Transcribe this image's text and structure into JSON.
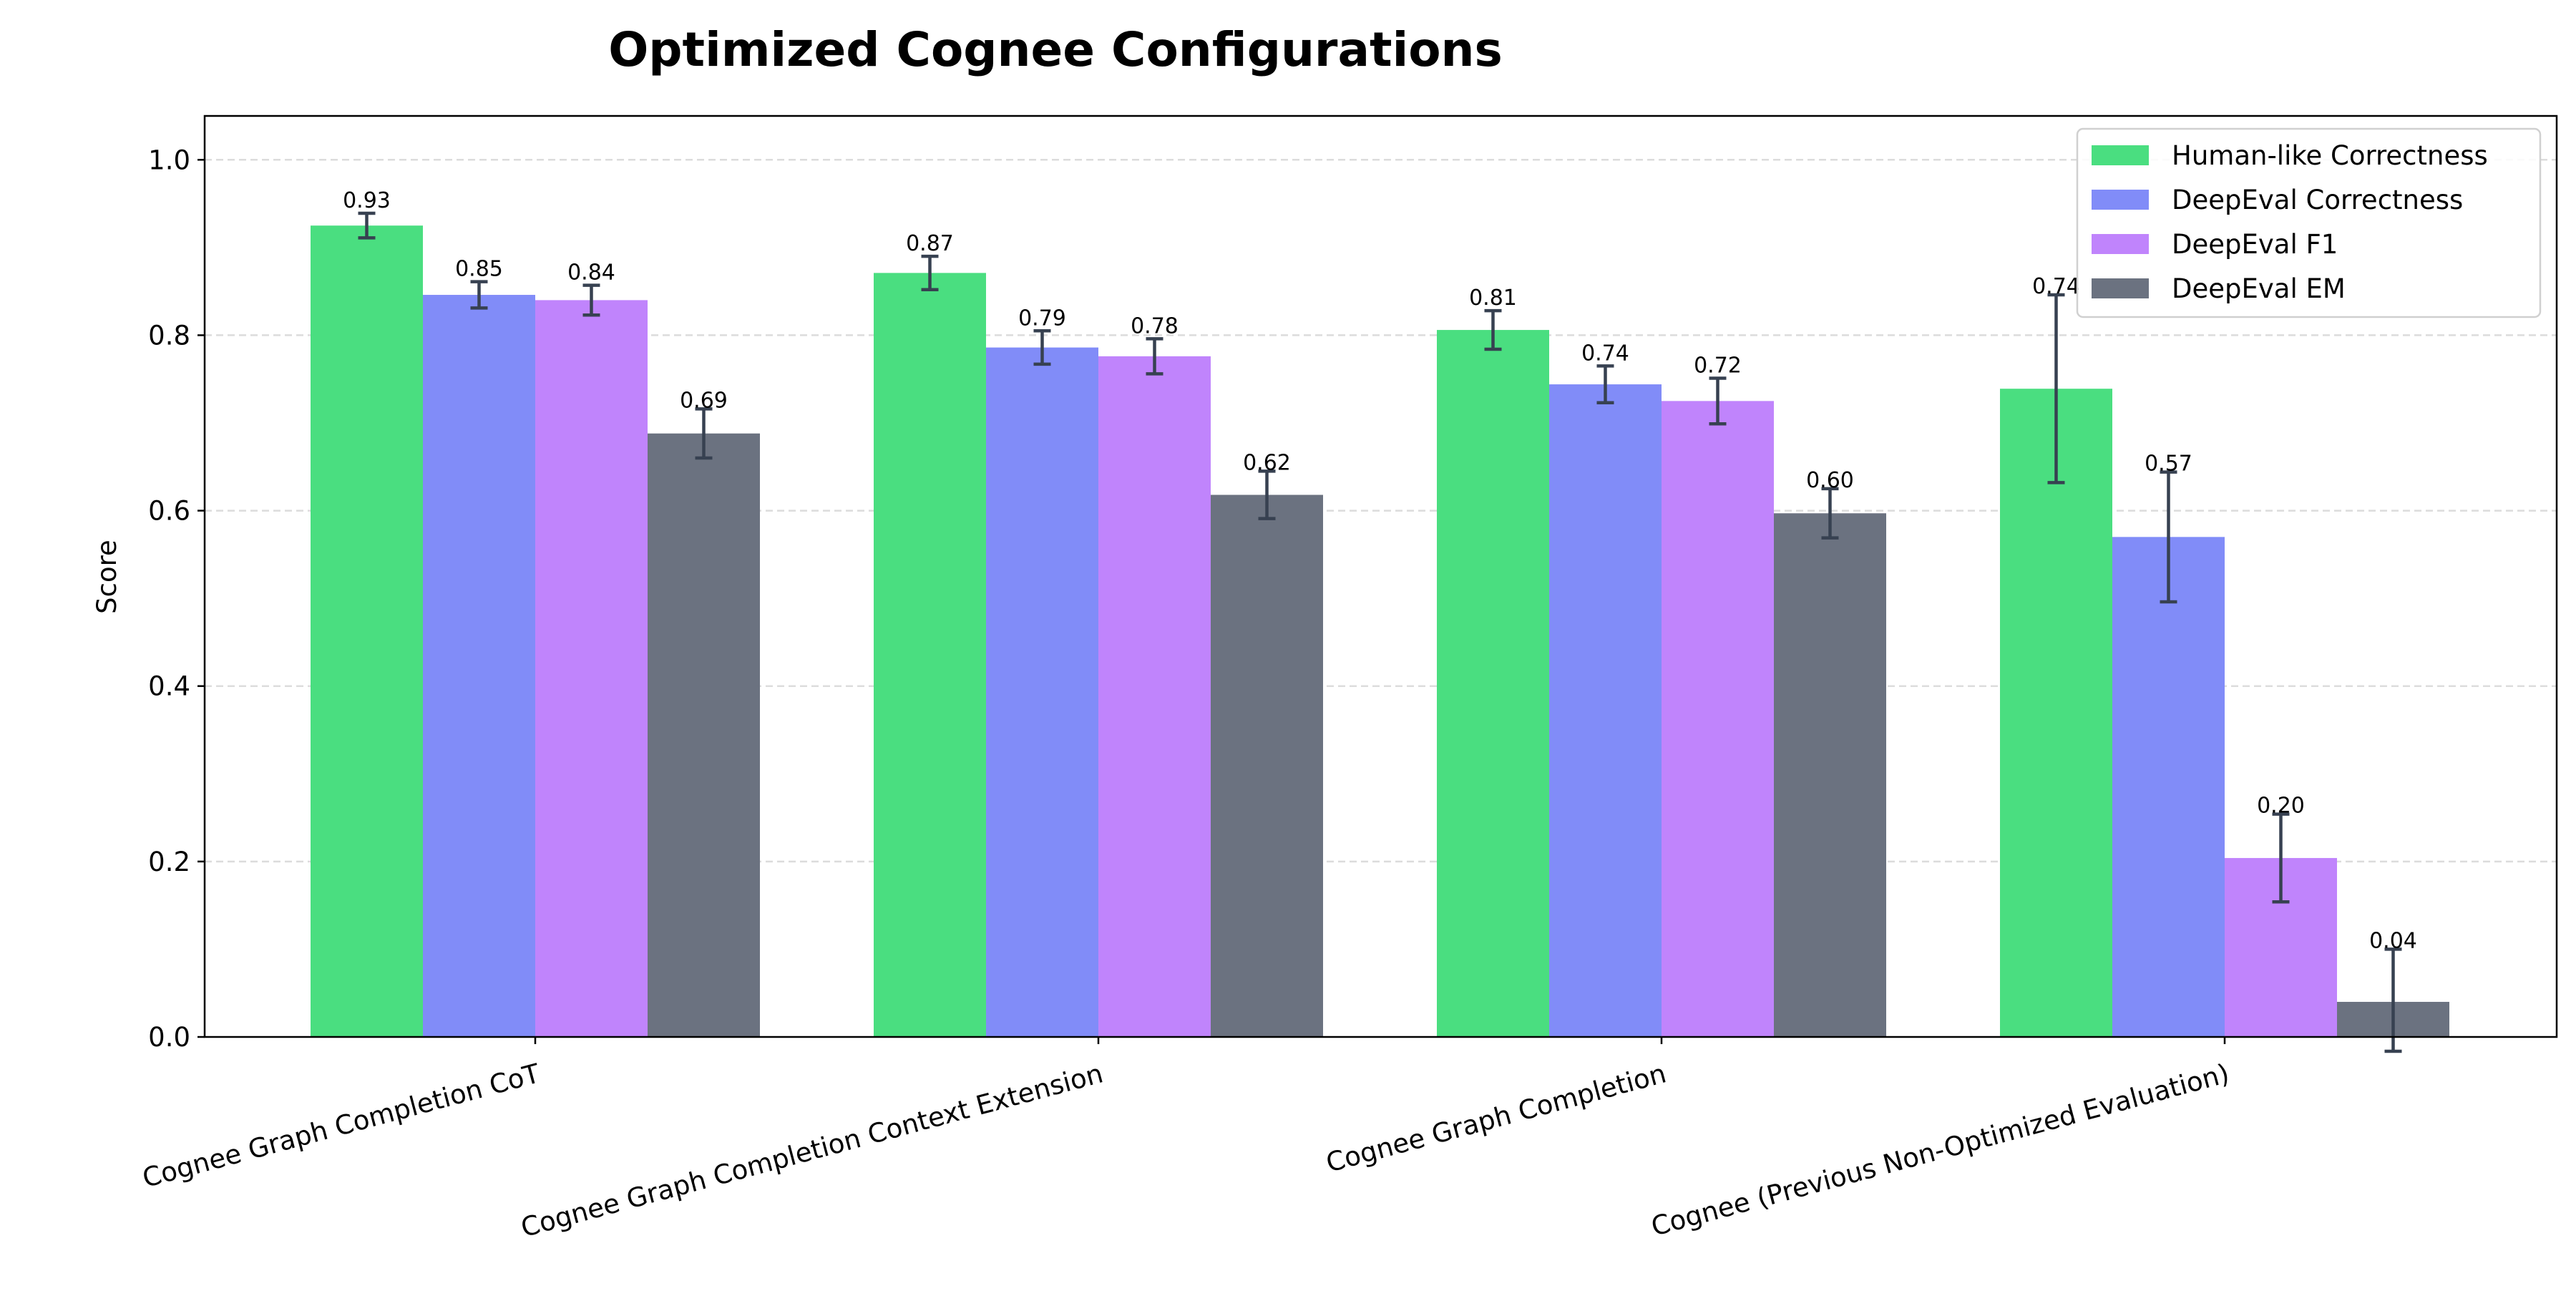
{
  "chart_data": {
    "type": "bar",
    "title": "Optimized Cognee Configurations",
    "xlabel": "",
    "ylabel": "Score",
    "ylim": [
      0,
      1.05
    ],
    "yticks": [
      "0.0",
      "0.2",
      "0.4",
      "0.6",
      "0.8",
      "1.0"
    ],
    "grid": "y-dashed",
    "legend_position": "top-right",
    "categories": [
      "Cognee Graph Completion CoT",
      "Cognee Graph Completion Context Extension",
      "Cognee Graph Completion",
      "Cognee (Previous Non-Optimized Evaluation)"
    ],
    "series": [
      {
        "name": "Human-like Correctness",
        "color": "#4ade80",
        "values": [
          0.925,
          0.871,
          0.806,
          0.739
        ],
        "errors": [
          0.014,
          0.019,
          0.022,
          0.107
        ],
        "labels": [
          "0.93",
          "0.87",
          "0.81",
          "0.74"
        ]
      },
      {
        "name": "DeepEval Correctness",
        "color": "#818cf8",
        "values": [
          0.846,
          0.786,
          0.744,
          0.57
        ],
        "errors": [
          0.015,
          0.019,
          0.021,
          0.074
        ],
        "labels": [
          "0.85",
          "0.79",
          "0.74",
          "0.57"
        ]
      },
      {
        "name": "DeepEval F1",
        "color": "#c084fc",
        "values": [
          0.84,
          0.776,
          0.725,
          0.204
        ],
        "errors": [
          0.017,
          0.02,
          0.026,
          0.05
        ],
        "labels": [
          "0.84",
          "0.78",
          "0.72",
          "0.20"
        ]
      },
      {
        "name": "DeepEval EM",
        "color": "#6b7280",
        "values": [
          0.688,
          0.618,
          0.597,
          0.04
        ],
        "errors": [
          0.028,
          0.027,
          0.028,
          0.06
        ],
        "labels": [
          "0.69",
          "0.62",
          "0.60",
          "0.04"
        ]
      }
    ],
    "error_bar_color": "#374151"
  }
}
